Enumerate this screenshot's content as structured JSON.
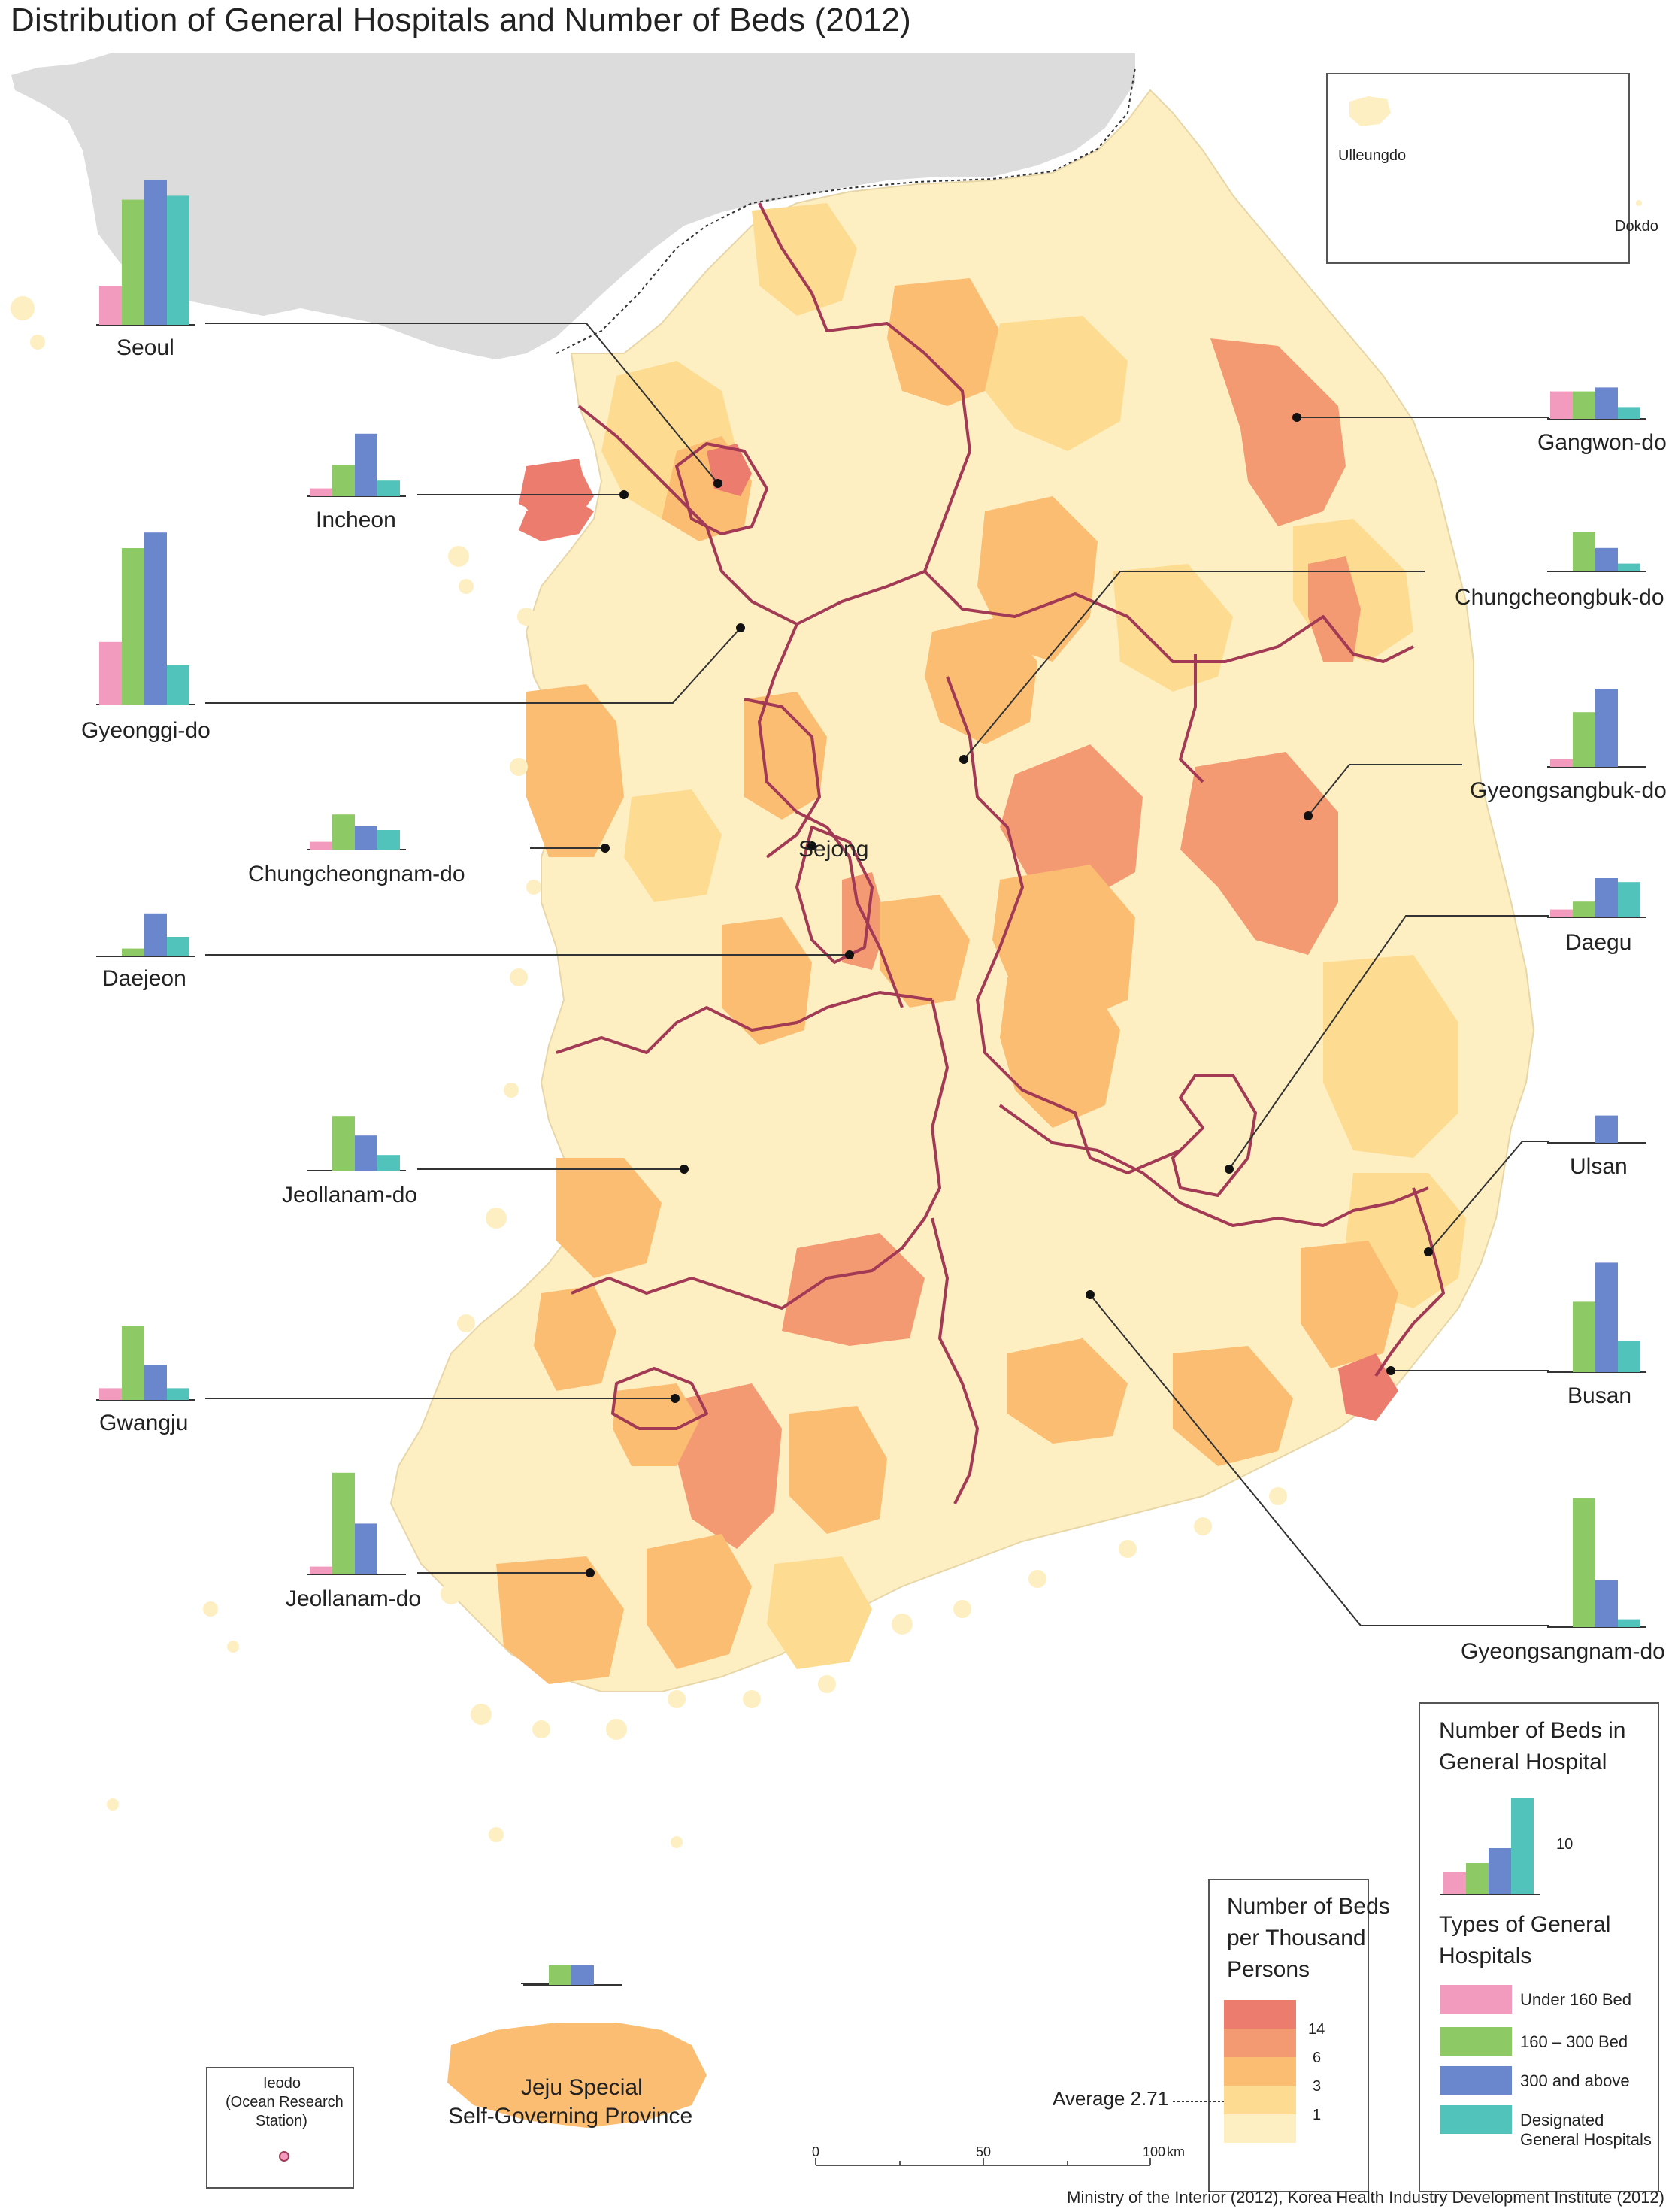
{
  "title": "Distribution of General Hospitals and Number of Beds (2012)",
  "colors": {
    "under160": "#F39ABF",
    "b160_300": "#8DC965",
    "above300": "#6A86CC",
    "designated": "#52C3BB",
    "land_pale": "#FEEFC2",
    "land_light": "#FDDC92",
    "land_mid": "#FBBD72",
    "land_strong": "#F39A72",
    "land_max": "#EC7C6E",
    "north_korea": "#DCDCDC",
    "province_border": "#A23A55"
  },
  "chart_data": {
    "type": "bar",
    "description_units": "grouped bars per province: number of beds by hospital type (scale shown: 10)",
    "series": [
      {
        "name": "Under 160 Bed",
        "key": "under160"
      },
      {
        "name": "160 – 300 Bed",
        "key": "b160_300"
      },
      {
        "name": "300 and above",
        "key": "above300"
      },
      {
        "name": "Designated General Hospitals",
        "key": "designated"
      }
    ],
    "regions": [
      {
        "name": "Seoul",
        "values": [
          10,
          32,
          37,
          33
        ]
      },
      {
        "name": "Incheon",
        "values": [
          2,
          8,
          16,
          4
        ]
      },
      {
        "name": "Gyeonggi-do",
        "values": [
          16,
          40,
          44,
          10
        ]
      },
      {
        "name": "Chungcheongnam-do",
        "values": [
          2,
          9,
          6,
          5
        ]
      },
      {
        "name": "Daejeon",
        "values": [
          0,
          2,
          11,
          5
        ]
      },
      {
        "name": "Jeollanam-do",
        "values": [
          0,
          14,
          9,
          4
        ]
      },
      {
        "name": "Gwangju",
        "values": [
          3,
          19,
          9,
          3
        ]
      },
      {
        "name": "Jeollanam-do",
        "values": [
          2,
          26,
          13,
          0
        ]
      },
      {
        "name": "Gangwon-do",
        "values": [
          7,
          7,
          8,
          3
        ]
      },
      {
        "name": "Chungcheongbuk-do",
        "values": [
          0,
          10,
          6,
          2
        ]
      },
      {
        "name": "Gyeongsangbuk-do",
        "values": [
          2,
          14,
          20,
          0
        ]
      },
      {
        "name": "Daegu",
        "values": [
          2,
          4,
          10,
          9
        ]
      },
      {
        "name": "Ulsan",
        "values": [
          0,
          0,
          7,
          0
        ]
      },
      {
        "name": "Busan",
        "values": [
          0,
          18,
          28,
          8
        ]
      },
      {
        "name": "Gyeongsangnam-do",
        "values": [
          0,
          33,
          12,
          2
        ]
      },
      {
        "name": "Jeju Special Self-Governing Province",
        "values": [
          0,
          5,
          5,
          0
        ]
      }
    ]
  },
  "labels": {
    "seoul": "Seoul",
    "incheon": "Incheon",
    "gyeonggi": "Gyeonggi-do",
    "chungnam": "Chungcheongnam-do",
    "daejeon": "Daejeon",
    "jeonbuk_label": "Jeollanam-do",
    "gwangju": "Gwangju",
    "jeonnam": "Jeollanam-do",
    "gangwon": "Gangwon-do",
    "chungbuk": "Chungcheongbuk-do",
    "gyeongbuk": "Gyeongsangbuk-do",
    "daegu": "Daegu",
    "ulsan": "Ulsan",
    "busan": "Busan",
    "gyeongnam": "Gyeongsangnam-do",
    "sejong": "Sejong",
    "jeju_line1": "Jeju Special",
    "jeju_line2": "Self-Governing Province",
    "ulleungdo": "Ulleungdo",
    "dokdo": "Dokdo",
    "ieodo_line1": "Ieodo",
    "ieodo_line2": "(Ocean Research",
    "ieodo_line3": "Station)"
  },
  "legend_beds": {
    "title_line1": "Number of Beds in",
    "title_line2": "General Hospital",
    "scale_value": "10",
    "types_title_line1": "Types of General",
    "types_title_line2": "Hospitals",
    "items": [
      {
        "label": "Under 160 Bed"
      },
      {
        "label": "160 – 300 Bed"
      },
      {
        "label": "300 and above"
      },
      {
        "label_line1": "Designated",
        "label_line2": "General Hospitals"
      }
    ]
  },
  "legend_density": {
    "title_line1": "Number of Beds",
    "title_line2": "per Thousand",
    "title_line3": "Persons",
    "breaks": [
      "14",
      "6",
      "3",
      "1"
    ],
    "average_label": "Average 2.71",
    "average_value": 2.71
  },
  "scale_bar": {
    "ticks": [
      "0",
      "50",
      "100"
    ],
    "unit": "km"
  },
  "source": "Ministry of the Interior (2012), Korea Health Industry Development Institute (2012)"
}
